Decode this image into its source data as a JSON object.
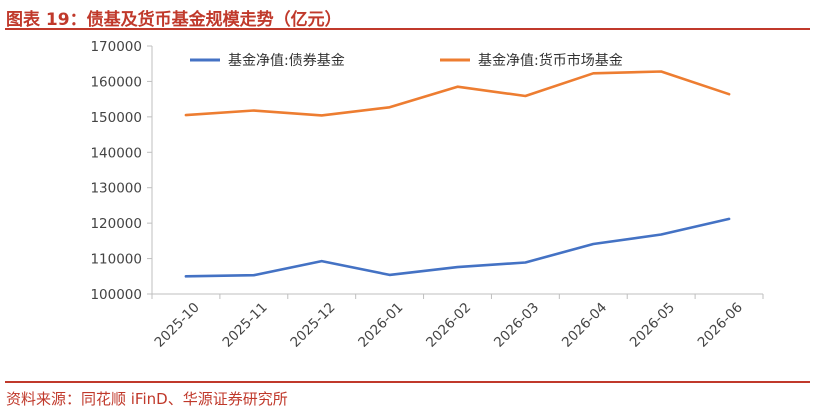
{
  "header": {
    "title": "图表 19：债基及货币基金规模走势（亿元）"
  },
  "footer": {
    "source": "资料来源：同花顺 iFinD、华源证券研究所"
  },
  "chart_data": {
    "type": "line",
    "categories": [
      "2025-10",
      "2025-11",
      "2025-12",
      "2026-01",
      "2026-02",
      "2026-03",
      "2026-04",
      "2026-05",
      "2026-06"
    ],
    "series": [
      {
        "name": "基金净值:债券基金",
        "color": "#4472c4",
        "values": [
          105000,
          105300,
          109300,
          105400,
          107600,
          108900,
          114100,
          116800,
          121200
        ]
      },
      {
        "name": "基金净值:货币市场基金",
        "color": "#ed7d31",
        "values": [
          150500,
          151800,
          150400,
          152700,
          158500,
          155900,
          162300,
          162800,
          156400
        ]
      }
    ],
    "ylim": [
      100000,
      170000
    ],
    "yticks": [
      "100000",
      "110000",
      "120000",
      "130000",
      "140000",
      "150000",
      "160000",
      "170000"
    ],
    "legend_position": "top",
    "grid": false
  }
}
